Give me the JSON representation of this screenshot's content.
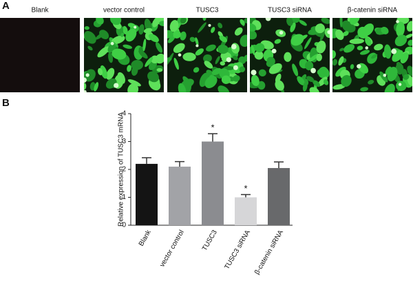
{
  "panel_a": {
    "label": "A",
    "images": [
      "Blank",
      "vector control",
      "TUSC3",
      "TUSC3 siRNA",
      "β-catenin siRNA"
    ]
  },
  "chart_data": {
    "type": "bar",
    "panel_label": "B",
    "y_label": "Relative expression of TUSC3 mRNA",
    "categories": [
      "Blank",
      "vector control",
      "TUSC3",
      "TUSC3 siRNA",
      "β-catenin siRNA"
    ],
    "values": [
      2.2,
      2.1,
      3.0,
      1.0,
      2.05
    ],
    "errors": [
      0.22,
      0.18,
      0.28,
      0.1,
      0.22
    ],
    "colors": [
      "#141414",
      "#a2a3a7",
      "#8b8c90",
      "#d6d6d8",
      "#68696b"
    ],
    "bar_annotations": [
      null,
      null,
      "*",
      "*",
      null
    ],
    "ylim": [
      0,
      4
    ],
    "yticks": [
      0,
      1,
      2,
      3,
      4
    ]
  }
}
